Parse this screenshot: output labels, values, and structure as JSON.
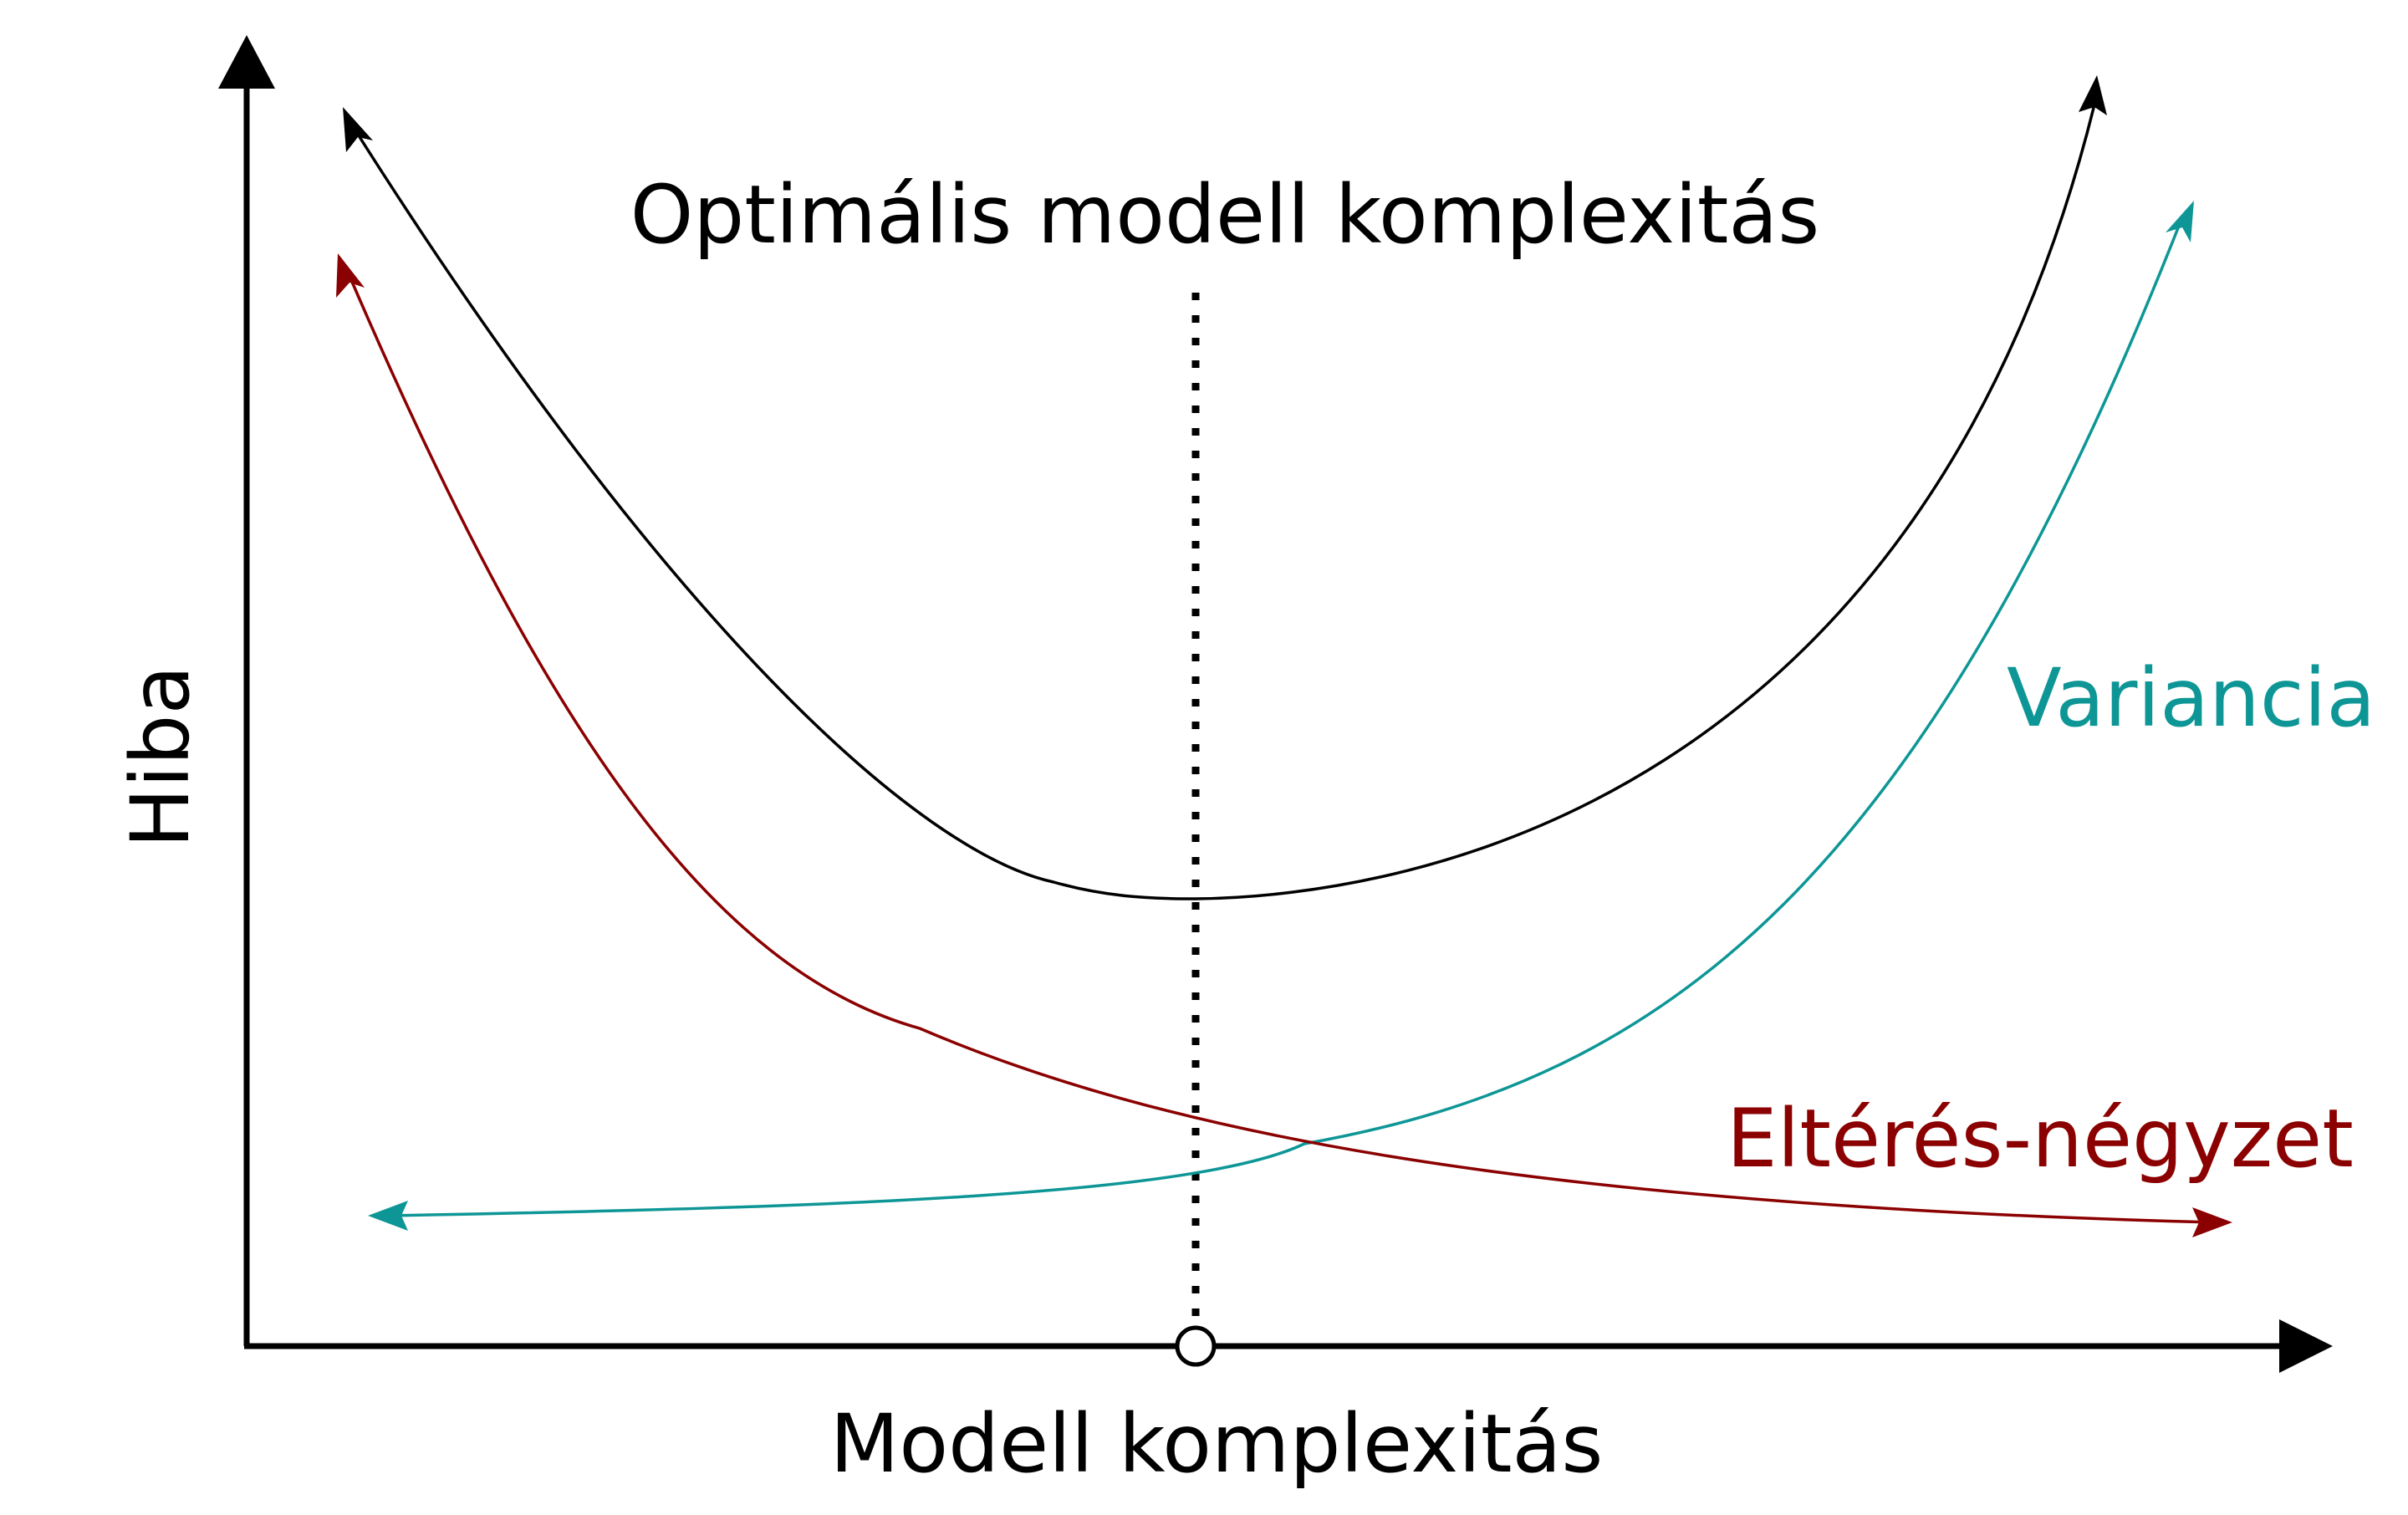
{
  "title": "Optimális modell komplexitás",
  "xlabel": "Modell komplexitás",
  "ylabel": "Hiba",
  "series": [
    {
      "key": "total",
      "name": "",
      "color": "#000000"
    },
    {
      "key": "variance",
      "name": "Variancia",
      "color": "#0e9696"
    },
    {
      "key": "bias",
      "name": "Eltérés-négyzet",
      "color": "#8b0000"
    }
  ],
  "colors": {
    "axis": "#000000",
    "optimum_marker": "#000000"
  }
}
